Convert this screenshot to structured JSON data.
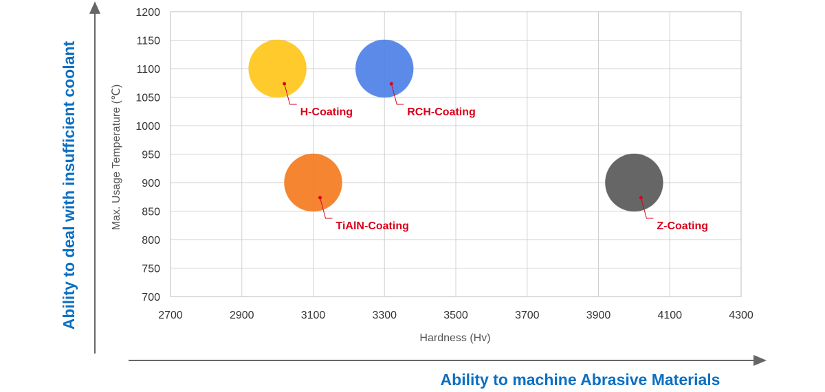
{
  "chart_data": {
    "type": "scatter",
    "title": "",
    "xlabel": "Hardness (Hv)",
    "ylabel": "Max. Usage Temperature (℃)",
    "xlim": [
      2700,
      4300
    ],
    "ylim": [
      700,
      1200
    ],
    "xticks": [
      2700,
      2900,
      3100,
      3300,
      3500,
      3700,
      3900,
      4100,
      4300
    ],
    "yticks": [
      700,
      750,
      800,
      850,
      900,
      950,
      1000,
      1050,
      1100,
      1150,
      1200
    ],
    "grid": true,
    "legend": "none",
    "points": [
      {
        "label": "H-Coating",
        "x": 3000,
        "y": 1100,
        "color": "#FFC61A"
      },
      {
        "label": "RCH-Coating",
        "x": 3300,
        "y": 1100,
        "color": "#4D80E6"
      },
      {
        "label": "TiAlN-Coating",
        "x": 3100,
        "y": 900,
        "color": "#F47B20"
      },
      {
        "label": "Z-Coating",
        "x": 4000,
        "y": 900,
        "color": "#595959"
      }
    ],
    "label_color": "#D9001B"
  },
  "annotations": {
    "vertical_axis_text": "Ability to deal with insufficient coolant",
    "horizontal_axis_text": "Ability to machine Abrasive Materials",
    "annotation_color": "#0A6FC2"
  }
}
